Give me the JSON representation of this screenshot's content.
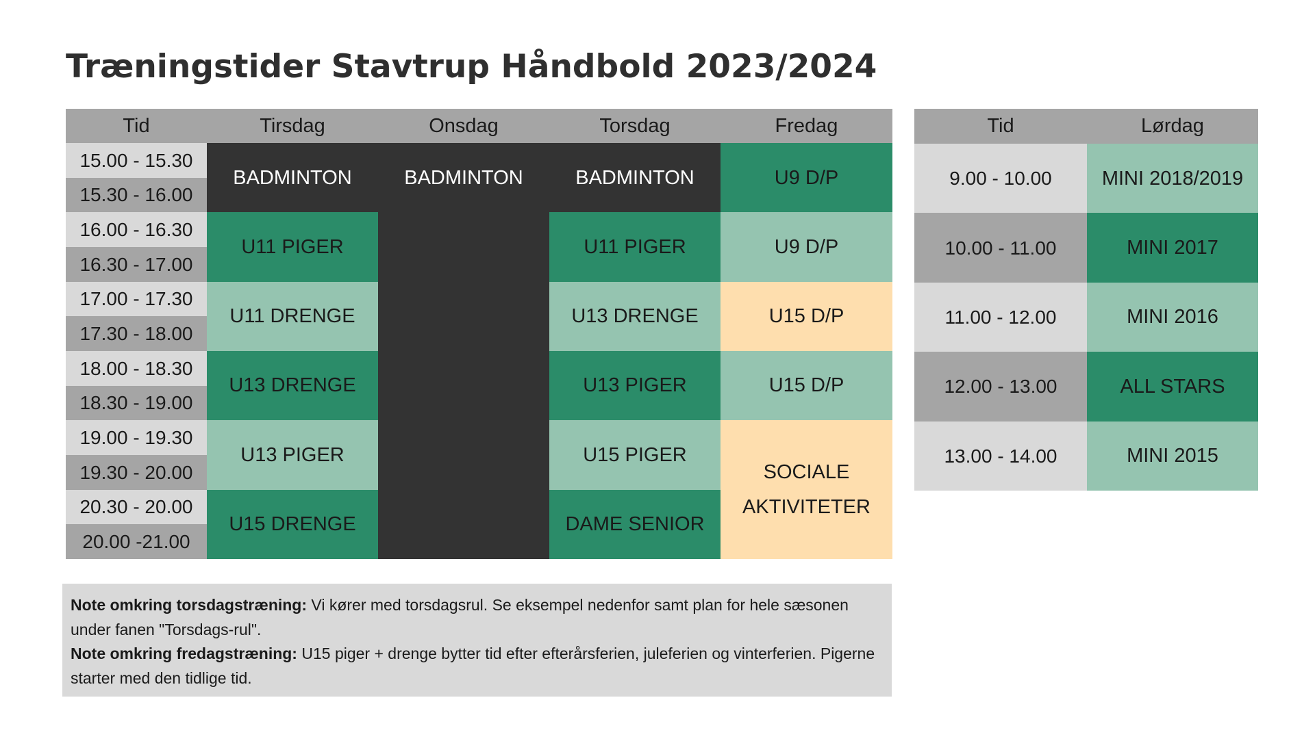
{
  "title": "Træningstider Stavtrup Håndbold 2023/2024",
  "weekday_table": {
    "headers": [
      "Tid",
      "Tirsdag",
      "Onsdag",
      "Torsdag",
      "Fredag"
    ],
    "times": [
      "15.00 - 15.30",
      "15.30 - 16.00",
      "16.00 - 16.30",
      "16.30 - 17.00",
      "17.00 - 17.30",
      "17.30 - 18.00",
      "18.00 - 18.30",
      "18.30 - 19.00",
      "19.00 - 19.30",
      "19.30 - 20.00",
      "20.30 - 20.00",
      "20.00 -21.00"
    ],
    "tirsdag": [
      "BADMINTON",
      "U11 PIGER",
      "U11 DRENGE",
      "U13 DRENGE",
      "U13 PIGER",
      "U15 DRENGE"
    ],
    "onsdag": [
      "BADMINTON"
    ],
    "torsdag": [
      "BADMINTON",
      "U11 PIGER",
      "U13 DRENGE",
      "U13 PIGER",
      "U15 PIGER",
      "DAME SENIOR"
    ],
    "fredag": [
      "U9 D/P",
      "U9 D/P",
      "U15 D/P",
      "U15 D/P",
      "SOCIALE AKTIVITETER"
    ]
  },
  "saturday_table": {
    "headers": [
      "Tid",
      "Lørdag"
    ],
    "times": [
      "9.00 - 10.00",
      "10.00 - 11.00",
      "11.00 - 12.00",
      "12.00 - 13.00",
      "13.00 - 14.00"
    ],
    "teams": [
      "MINI 2018/2019",
      "MINI 2017",
      "MINI 2016",
      "ALL STARS",
      "MINI 2015"
    ]
  },
  "notes": {
    "thursday_label": "Note omkring torsdagstræning:",
    "thursday_text": " Vi kører med torsdagsrul. Se eksempel nedenfor samt plan for hele sæsonen under fanen \"Torsdags-rul\".",
    "friday_label": "Note omkring fredagstræning:",
    "friday_text": " U15 piger + drenge bytter tid efter efterårsferien, juleferien og vinterferien. Pigerne starter med den tidlige tid."
  },
  "colors": {
    "header_gray": "#a5a5a5",
    "light_gray": "#d9d9d9",
    "dark_block": "#333333",
    "dark_green": "#2b8c69",
    "light_green": "#95c4b0",
    "peach": "#fedeae"
  }
}
